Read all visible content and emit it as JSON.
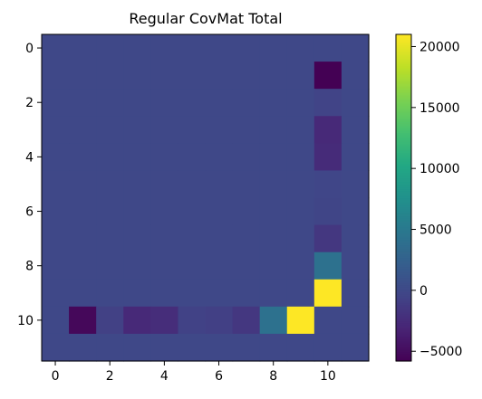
{
  "chart_data": {
    "type": "heatmap",
    "title": "Regular CovMat Total",
    "xlabel": "",
    "ylabel": "",
    "rows": 12,
    "cols": 12,
    "x_ticks": [
      0,
      2,
      4,
      6,
      8,
      10
    ],
    "y_ticks": [
      0,
      2,
      4,
      6,
      8,
      10
    ],
    "x_tick_labels": [
      "0",
      "2",
      "4",
      "6",
      "8",
      "10"
    ],
    "y_tick_labels": [
      "0",
      "2",
      "4",
      "6",
      "8",
      "10"
    ],
    "colormap": "viridis",
    "vmin": -5800,
    "vmax": 21000,
    "colorbar_ticks": [
      -5000,
      0,
      5000,
      10000,
      15000,
      20000
    ],
    "colorbar_tick_labels": [
      "−5000",
      "0",
      "5000",
      "10000",
      "15000",
      "20000"
    ],
    "background_value": 0,
    "cells": [
      {
        "row": 1,
        "col": 10,
        "value": -5800
      },
      {
        "row": 2,
        "col": 10,
        "value": -400
      },
      {
        "row": 3,
        "col": 10,
        "value": -2700
      },
      {
        "row": 4,
        "col": 10,
        "value": -2500
      },
      {
        "row": 5,
        "col": 10,
        "value": -200
      },
      {
        "row": 6,
        "col": 10,
        "value": -300
      },
      {
        "row": 7,
        "col": 10,
        "value": -1500
      },
      {
        "row": 8,
        "col": 10,
        "value": 4200
      },
      {
        "row": 9,
        "col": 10,
        "value": 21000
      },
      {
        "row": 10,
        "col": 1,
        "value": -5300
      },
      {
        "row": 10,
        "col": 2,
        "value": -700
      },
      {
        "row": 10,
        "col": 3,
        "value": -2700
      },
      {
        "row": 10,
        "col": 4,
        "value": -2400
      },
      {
        "row": 10,
        "col": 5,
        "value": -600
      },
      {
        "row": 10,
        "col": 6,
        "value": -800
      },
      {
        "row": 10,
        "col": 7,
        "value": -1500
      },
      {
        "row": 10,
        "col": 8,
        "value": 4200
      },
      {
        "row": 10,
        "col": 9,
        "value": 21000
      }
    ]
  }
}
